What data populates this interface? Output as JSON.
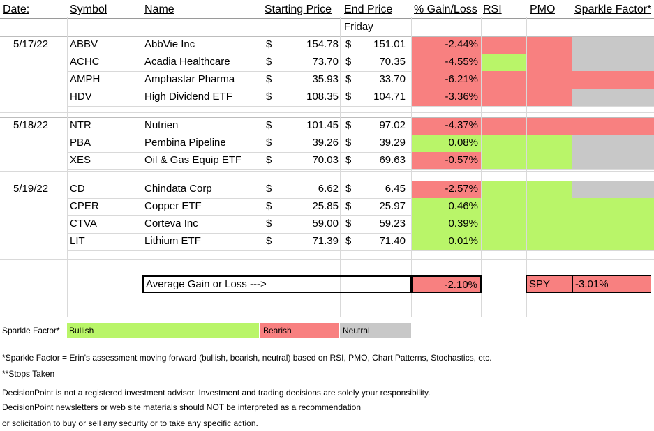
{
  "headers": {
    "date": "Date:",
    "symbol": "Symbol",
    "name": "Name",
    "starting_price": "Starting Price",
    "end_price": "End Price",
    "end_price_sub": "Friday",
    "gain_loss": "% Gain/Loss",
    "rsi": "RSI",
    "pmo": "PMO",
    "sparkle": "Sparkle Factor*"
  },
  "currency_symbol": "$",
  "groups": [
    {
      "date": "5/17/22",
      "rows": [
        {
          "symbol": "ABBV",
          "name": "AbbVie Inc",
          "start": "154.78",
          "end": "151.01",
          "gain": "-2.44%",
          "gain_color": "red",
          "rsi": "red",
          "pmo": "red",
          "sparkle": "gray"
        },
        {
          "symbol": "ACHC",
          "name": "Acadia Healthcare",
          "start": "73.70",
          "end": "70.35",
          "gain": "-4.55%",
          "gain_color": "red",
          "rsi": "green",
          "pmo": "red",
          "sparkle": "gray"
        },
        {
          "symbol": "AMPH",
          "name": "Amphastar Pharma",
          "start": "35.93",
          "end": "33.70",
          "gain": "-6.21%",
          "gain_color": "red",
          "rsi": "red",
          "pmo": "red",
          "sparkle": "red"
        },
        {
          "symbol": "HDV",
          "name": "High Dividend ETF",
          "start": "108.35",
          "end": "104.71",
          "gain": "-3.36%",
          "gain_color": "red",
          "rsi": "red",
          "pmo": "red",
          "sparkle": "gray"
        }
      ]
    },
    {
      "date": "5/18/22",
      "rows": [
        {
          "symbol": "NTR",
          "name": "Nutrien",
          "start": "101.45",
          "end": "97.02",
          "gain": "-4.37%",
          "gain_color": "red",
          "rsi": "red",
          "pmo": "red",
          "sparkle": "red"
        },
        {
          "symbol": "PBA",
          "name": "Pembina Pipeline",
          "start": "39.26",
          "end": "39.29",
          "gain": "0.08%",
          "gain_color": "green",
          "rsi": "green",
          "pmo": "green",
          "sparkle": "gray"
        },
        {
          "symbol": "XES",
          "name": "Oil & Gas Equip ETF",
          "start": "70.03",
          "end": "69.63",
          "gain": "-0.57%",
          "gain_color": "red",
          "rsi": "green",
          "pmo": "green",
          "sparkle": "gray"
        }
      ]
    },
    {
      "date": "5/19/22",
      "rows": [
        {
          "symbol": "CD",
          "name": "Chindata Corp",
          "start": "6.62",
          "end": "6.45",
          "gain": "-2.57%",
          "gain_color": "red",
          "rsi": "green",
          "pmo": "green",
          "sparkle": "gray"
        },
        {
          "symbol": "CPER",
          "name": "Copper ETF",
          "start": "25.85",
          "end": "25.97",
          "gain": "0.46%",
          "gain_color": "green",
          "rsi": "green",
          "pmo": "green",
          "sparkle": "green"
        },
        {
          "symbol": "CTVA",
          "name": "Corteva Inc",
          "start": "59.00",
          "end": "59.23",
          "gain": "0.39%",
          "gain_color": "green",
          "rsi": "green",
          "pmo": "green",
          "sparkle": "green"
        },
        {
          "symbol": "LIT",
          "name": "Lithium ETF",
          "start": "71.39",
          "end": "71.40",
          "gain": "0.01%",
          "gain_color": "green",
          "rsi": "green",
          "pmo": "green",
          "sparkle": "green"
        }
      ]
    }
  ],
  "summary": {
    "average_label": "Average Gain or Loss --->",
    "average_value": "-2.10%",
    "spy_label": "SPY",
    "spy_value": "-3.01%"
  },
  "legend": {
    "label": "Sparkle Factor*",
    "bullish": "Bullish",
    "bearish": "Bearish",
    "neutral": "Neutral"
  },
  "notes": [
    "*Sparkle Factor = Erin's assessment moving forward (bullish, bearish, neutral) based on RSI, PMO, Chart Patterns, Stochastics, etc.",
    "**Stops Taken",
    "DecisionPoint is not a registered investment advisor. Investment and trading decisions are solely your responsibility.",
    "DecisionPoint newsletters or web site materials should NOT be interpreted as a recommendation",
    "or solicitation to buy or sell any security or to take any specific action."
  ],
  "colors": {
    "red": "#f88080",
    "green": "#b9f569",
    "gray": "#c8c8c8"
  }
}
